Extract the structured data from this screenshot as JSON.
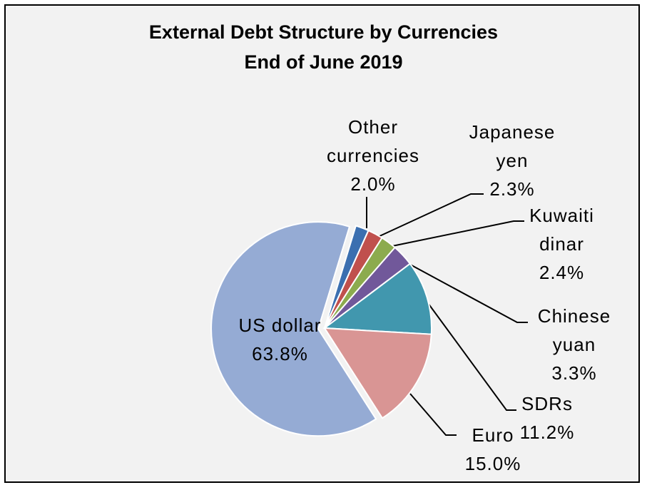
{
  "chart_data": {
    "type": "pie",
    "title": "External Debt Structure by Currencies",
    "subtitle": "End of June 2019",
    "categories": [
      "Other currencies",
      "Japanese yen",
      "Kuwaiti dinar",
      "Chinese yuan",
      "SDRs",
      "Euro",
      "US dollar"
    ],
    "values": [
      2.0,
      2.3,
      2.4,
      3.3,
      11.2,
      15.0,
      63.8
    ],
    "value_labels": [
      "2.0%",
      "2.3%",
      "2.4%",
      "3.3%",
      "11.2%",
      "15.0%",
      "63.8%"
    ],
    "colors": [
      "#3b6fb0",
      "#c0504d",
      "#8cab4e",
      "#71589a",
      "#4197ae",
      "#d99594",
      "#95abd4"
    ]
  }
}
